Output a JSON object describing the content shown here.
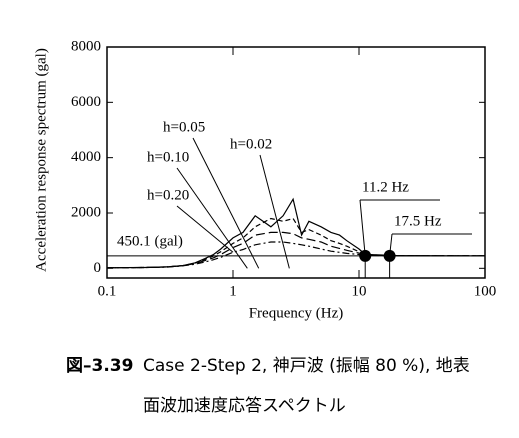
{
  "chart_data": {
    "type": "line",
    "x_scale": "log",
    "xlabel": "Frequency (Hz)",
    "ylabel": "Acceleration response spectrum (gal)",
    "x": [
      0.1,
      0.2,
      0.3,
      0.4,
      0.5,
      0.6,
      0.7,
      0.8,
      1.0,
      1.2,
      1.5,
      2,
      2.5,
      3,
      3.5,
      4,
      5,
      6,
      7,
      8,
      10,
      11.2,
      15,
      17.5,
      20,
      30,
      50,
      100
    ],
    "series": [
      {
        "name": "h=0.02",
        "color": "#000000",
        "line_style": "solid",
        "values": [
          20,
          30,
          50,
          100,
          200,
          350,
          500,
          700,
          1100,
          1300,
          1900,
          1500,
          1900,
          2500,
          1200,
          1700,
          1500,
          1300,
          1200,
          1000,
          700,
          500,
          480,
          470,
          460,
          455,
          452,
          450
        ]
      },
      {
        "name": "h=0.05",
        "color": "#000000",
        "line_style": "dashed",
        "values": [
          20,
          30,
          50,
          100,
          190,
          320,
          450,
          600,
          900,
          1100,
          1500,
          1800,
          1700,
          1800,
          1300,
          1400,
          1200,
          1000,
          900,
          800,
          600,
          500,
          470,
          465,
          455,
          452,
          450,
          450
        ]
      },
      {
        "name": "h=0.10",
        "color": "#000000",
        "line_style": "longdash",
        "values": [
          20,
          30,
          50,
          95,
          170,
          280,
          380,
          500,
          750,
          900,
          1200,
          1300,
          1300,
          1250,
          1100,
          1050,
          950,
          800,
          720,
          650,
          550,
          490,
          470,
          460,
          455,
          452,
          450,
          450
        ]
      },
      {
        "name": "h=0.20",
        "color": "#000000",
        "line_style": "dashdot",
        "values": [
          20,
          28,
          45,
          90,
          150,
          230,
          310,
          400,
          580,
          680,
          850,
          950,
          950,
          900,
          850,
          800,
          700,
          620,
          580,
          540,
          500,
          470,
          460,
          455,
          452,
          450,
          450,
          450
        ]
      }
    ],
    "xlim": [
      0.1,
      100
    ],
    "xticks": [
      {
        "value": 0.1,
        "label": "0.1"
      },
      1,
      10,
      100
    ],
    "ylim": [
      -350,
      8000
    ],
    "yticks": [
      0,
      2000,
      4000,
      6000,
      8000
    ],
    "reference_line": {
      "text": "450.1 (gal)",
      "value": 450.1
    },
    "markers": [
      {
        "label": "11.2 Hz",
        "x": 11.2,
        "value": 450
      },
      {
        "label": "17.5 Hz",
        "x": 17.5,
        "value": 450
      }
    ]
  },
  "caption": {
    "number": "図–3.39",
    "lines": [
      "Case 2-Step 2, 神戸波 (振幅 80 %), 地表",
      "面波加速度応答スペクトル"
    ]
  }
}
